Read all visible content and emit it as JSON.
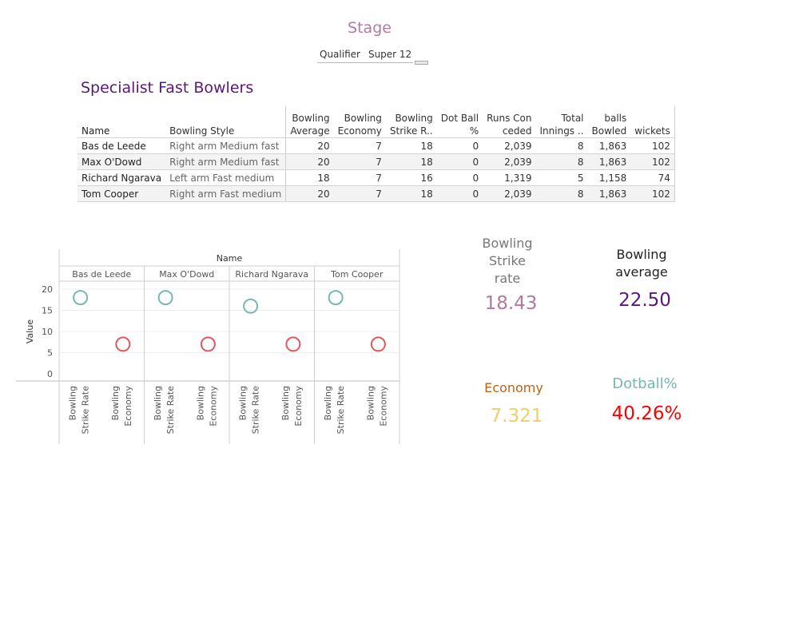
{
  "stage": {
    "title": "Stage",
    "options": [
      "Qualifier",
      "Super 12"
    ]
  },
  "table": {
    "title": "Specialist Fast Bowlers",
    "columns": [
      [
        "Name"
      ],
      [
        "Bowling Style"
      ],
      [
        "Bowling",
        "Average"
      ],
      [
        "Bowling",
        "Economy"
      ],
      [
        "Bowling",
        "Strike R.."
      ],
      [
        "Dot Ball",
        "%"
      ],
      [
        "Runs Con",
        "ceded"
      ],
      [
        "Total",
        "Innings .."
      ],
      [
        "balls",
        "Bowled"
      ],
      [
        "wickets"
      ]
    ],
    "rows": [
      [
        "Bas de Leede",
        "Right arm Medium fast",
        "20",
        "7",
        "18",
        "0",
        "2,039",
        "8",
        "1,863",
        "102"
      ],
      [
        "Max O'Dowd",
        "Right arm Medium fast",
        "20",
        "7",
        "18",
        "0",
        "2,039",
        "8",
        "1,863",
        "102"
      ],
      [
        "Richard Ngarava",
        "Left arm Fast medium",
        "18",
        "7",
        "16",
        "0",
        "1,319",
        "5",
        "1,158",
        "74"
      ],
      [
        "Tom Cooper",
        "Right arm Fast medium",
        "20",
        "7",
        "18",
        "0",
        "2,039",
        "8",
        "1,863",
        "102"
      ]
    ]
  },
  "chart_data": {
    "type": "scatter",
    "title": "Name",
    "ylabel": "Value",
    "ylim": [
      0,
      20
    ],
    "yticks": [
      0,
      5,
      10,
      15,
      20
    ],
    "categories": [
      "Bas de Leede",
      "Max O'Dowd",
      "Richard Ngarava",
      "Tom Cooper"
    ],
    "measures": [
      [
        "Bowling",
        "Strike Rate"
      ],
      [
        "Bowling",
        "Economy"
      ]
    ],
    "series": [
      {
        "name": "Bowling Strike Rate",
        "color": "#76b7b2",
        "values": [
          18,
          18,
          16,
          18
        ]
      },
      {
        "name": "Bowling Economy",
        "color": "#e15759",
        "values": [
          7,
          7,
          7,
          7
        ]
      }
    ]
  },
  "kpis": {
    "strike_rate": {
      "label_lines": [
        "Bowling",
        "Strike",
        "rate"
      ],
      "value": "18.43",
      "color": "#b07aa1"
    },
    "average": {
      "label_lines": [
        "Bowling",
        "average"
      ],
      "value": "22.50",
      "color": "#5a1878"
    },
    "economy": {
      "label_lines": [
        "Economy"
      ],
      "value": "7.321",
      "color": "#f1ce63",
      "label_color": "#b5651d"
    },
    "dotball": {
      "label_lines": [
        "Dotball%"
      ],
      "value": "40.26%",
      "color": "#ff0000",
      "label_color": "#76b7b2"
    }
  }
}
